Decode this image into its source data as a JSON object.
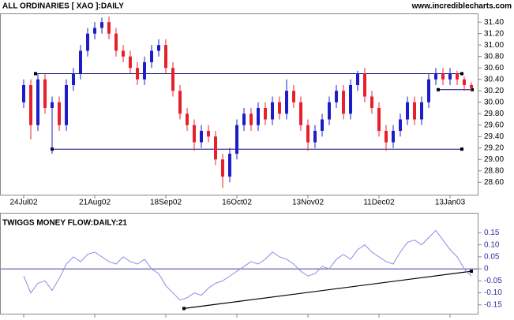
{
  "source": "www.incrediblecharts.com",
  "chart_data": [
    {
      "type": "candlestick",
      "title": "ALL ORDINARIES [ XAO ]:DAILY",
      "categories": [
        "24Jul02",
        null,
        null,
        null,
        null,
        null,
        null,
        null,
        null,
        null,
        "21Aug02",
        null,
        null,
        null,
        null,
        null,
        null,
        null,
        null,
        null,
        "18Sep02",
        null,
        null,
        null,
        null,
        null,
        null,
        null,
        null,
        null,
        "16Oct02",
        null,
        null,
        null,
        null,
        null,
        null,
        null,
        null,
        null,
        "13Nov02",
        null,
        null,
        null,
        null,
        null,
        null,
        null,
        null,
        null,
        "11Dec02",
        null,
        null,
        null,
        null,
        null,
        null,
        null,
        null,
        null,
        "13Jan03",
        null,
        null,
        null
      ],
      "open": [
        30.0,
        30.3,
        29.6,
        30.4,
        29.9,
        30.0,
        29.6,
        30.3,
        30.5,
        30.9,
        31.2,
        31.3,
        31.4,
        31.2,
        30.9,
        30.8,
        30.6,
        30.4,
        30.7,
        30.9,
        31.0,
        30.6,
        30.2,
        29.8,
        29.6,
        29.3,
        29.5,
        29.4,
        29.0,
        28.7,
        29.1,
        29.6,
        29.8,
        29.6,
        29.9,
        29.7,
        30.0,
        29.8,
        30.2,
        30.0,
        29.6,
        29.3,
        29.5,
        29.7,
        30.0,
        30.2,
        29.8,
        30.3,
        30.5,
        30.1,
        29.9,
        29.5,
        29.3,
        29.5,
        29.7,
        30.0,
        29.7,
        30.0,
        30.4,
        30.5,
        30.4,
        30.5,
        30.4,
        30.3
      ],
      "high": [
        30.4,
        30.4,
        30.5,
        30.5,
        30.1,
        30.1,
        30.4,
        30.6,
        31.0,
        31.3,
        31.4,
        31.48,
        31.5,
        31.3,
        31.0,
        30.9,
        30.7,
        30.8,
        31.0,
        31.1,
        31.1,
        30.7,
        30.3,
        29.9,
        29.7,
        29.6,
        29.6,
        29.5,
        29.1,
        29.2,
        29.7,
        29.9,
        29.9,
        30.0,
        30.0,
        30.1,
        30.1,
        30.4,
        30.3,
        30.1,
        29.7,
        29.6,
        29.8,
        30.1,
        30.3,
        30.3,
        30.4,
        30.55,
        30.6,
        30.2,
        30.0,
        29.6,
        29.6,
        29.8,
        30.1,
        30.1,
        30.1,
        30.5,
        30.6,
        30.6,
        30.6,
        30.55,
        30.45,
        30.35
      ],
      "low": [
        29.9,
        29.35,
        29.5,
        29.8,
        29.1,
        29.5,
        29.5,
        30.2,
        30.4,
        30.8,
        31.1,
        31.2,
        31.1,
        30.8,
        30.7,
        30.5,
        30.3,
        30.3,
        30.6,
        30.8,
        30.5,
        30.1,
        29.7,
        29.5,
        29.15,
        29.2,
        29.3,
        28.9,
        28.5,
        28.6,
        29.0,
        29.5,
        29.5,
        29.5,
        29.6,
        29.6,
        29.7,
        29.7,
        29.9,
        29.5,
        29.15,
        29.2,
        29.4,
        29.6,
        29.9,
        29.7,
        29.7,
        30.2,
        30.0,
        29.8,
        29.4,
        29.15,
        29.2,
        29.4,
        29.6,
        29.6,
        29.6,
        29.9,
        30.3,
        30.3,
        30.3,
        30.3,
        30.2,
        30.2
      ],
      "close": [
        30.3,
        29.6,
        30.4,
        29.9,
        30.0,
        29.6,
        30.3,
        30.5,
        30.9,
        31.2,
        31.3,
        31.4,
        31.2,
        30.9,
        30.8,
        30.6,
        30.4,
        30.7,
        30.9,
        31.0,
        30.6,
        30.2,
        29.8,
        29.6,
        29.3,
        29.5,
        29.4,
        29.0,
        28.7,
        29.1,
        29.6,
        29.8,
        29.6,
        29.9,
        29.7,
        30.0,
        29.8,
        30.2,
        30.0,
        29.6,
        29.3,
        29.5,
        29.7,
        30.0,
        30.2,
        29.8,
        30.3,
        30.5,
        30.1,
        29.9,
        29.5,
        29.3,
        29.5,
        29.7,
        30.0,
        29.7,
        30.0,
        30.4,
        30.5,
        30.4,
        30.5,
        30.4,
        30.3,
        30.25
      ],
      "up_color": "#1c1cc8",
      "down_color": "#e8202c",
      "levels": [
        30.5,
        29.18,
        30.22
      ],
      "level_color": "#000080",
      "ylim": [
        28.37,
        31.54
      ],
      "yticks": [
        {
          "value": 28.6,
          "label": "28.60"
        },
        {
          "value": 28.8,
          "label": "28.80"
        },
        {
          "value": 29.0,
          "label": "29.00"
        },
        {
          "value": 29.2,
          "label": "29.20"
        },
        {
          "value": 29.4,
          "label": "29.40"
        },
        {
          "value": 29.6,
          "label": "29.60"
        },
        {
          "value": 29.8,
          "label": "29.80"
        },
        {
          "value": 30.0,
          "label": "30.00"
        },
        {
          "value": 30.2,
          "label": "30.20"
        },
        {
          "value": 30.4,
          "label": "30.40"
        },
        {
          "value": 30.6,
          "label": "30.60"
        },
        {
          "value": 30.8,
          "label": "30.80"
        },
        {
          "value": 31.0,
          "label": "31.00"
        },
        {
          "value": 31.2,
          "label": "31.20"
        },
        {
          "value": 31.4,
          "label": "31.40"
        }
      ]
    },
    {
      "type": "line",
      "title": "TWIGGS MONEY FLOW:DAILY:21",
      "values": [
        -0.03,
        -0.1,
        -0.06,
        -0.05,
        -0.09,
        -0.04,
        0.02,
        0.05,
        0.03,
        0.06,
        0.07,
        0.05,
        0.03,
        0.02,
        0.05,
        0.03,
        0.02,
        0.04,
        0.0,
        -0.02,
        -0.07,
        -0.1,
        -0.13,
        -0.12,
        -0.1,
        -0.11,
        -0.08,
        -0.06,
        -0.05,
        -0.03,
        -0.01,
        0.01,
        0.03,
        0.02,
        0.04,
        0.07,
        0.05,
        0.04,
        0.02,
        -0.01,
        -0.03,
        -0.02,
        0.01,
        0.0,
        0.04,
        0.06,
        0.04,
        0.08,
        0.1,
        0.07,
        0.05,
        0.03,
        0.02,
        0.07,
        0.11,
        0.12,
        0.1,
        0.13,
        0.16,
        0.12,
        0.08,
        0.05,
        0.0,
        -0.03
      ],
      "color": "#8a8ae6",
      "zero_color": "#000080",
      "trendline": [
        -0.165,
        -0.01
      ],
      "ylim": [
        -0.19,
        0.23
      ],
      "yticks": [
        {
          "value": -0.15,
          "label": "-0.15"
        },
        {
          "value": -0.1,
          "label": "-0.10"
        },
        {
          "value": -0.05,
          "label": "-0.05"
        },
        0,
        {
          "value": 0.05,
          "label": "0.05"
        },
        {
          "value": 0.1,
          "label": "0.10"
        },
        {
          "value": 0.15,
          "label": "0.15"
        }
      ]
    }
  ]
}
